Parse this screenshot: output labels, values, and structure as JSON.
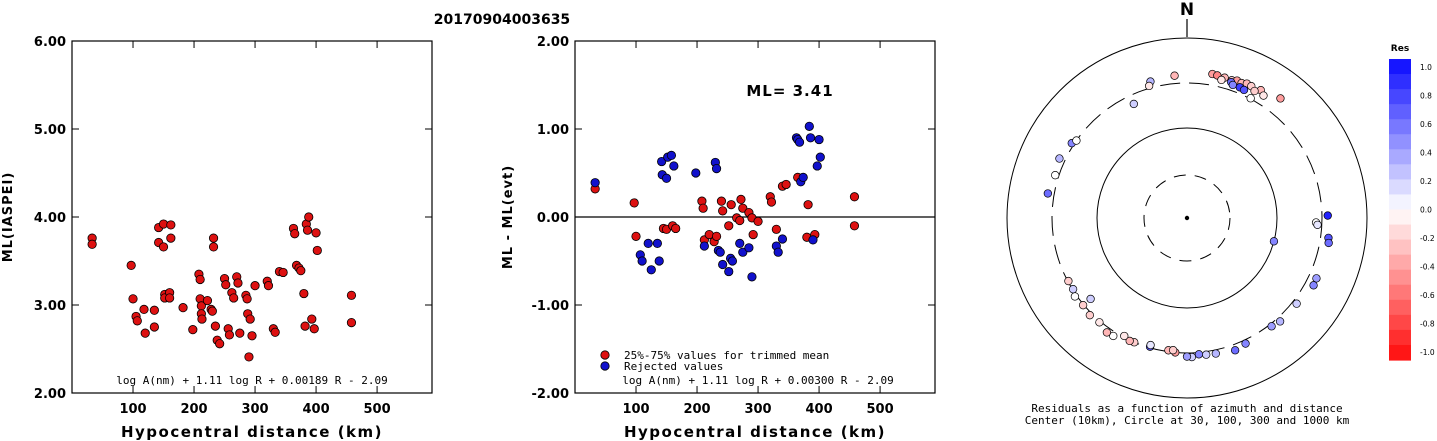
{
  "title": "20170904003635",
  "left_plot": {
    "type": "scatter",
    "ylabel": "ML(IASPEI)",
    "xlabel": "Hypocentral distance (km)",
    "xlim": [
      0,
      590
    ],
    "ylim": [
      2.0,
      6.0
    ],
    "xticks": [
      100,
      200,
      300,
      400,
      500
    ],
    "yticks": [
      "2.00",
      "3.00",
      "4.00",
      "5.00",
      "6.00"
    ],
    "formula": "log A(nm) + 1.11 log R + 0.00189 R - 2.09",
    "color": "#dd1111",
    "points": [
      [
        33,
        3.76
      ],
      [
        33,
        3.69
      ],
      [
        97,
        3.45
      ],
      [
        100,
        3.07
      ],
      [
        105,
        2.87
      ],
      [
        107,
        2.82
      ],
      [
        118,
        2.95
      ],
      [
        120,
        2.68
      ],
      [
        135,
        2.75
      ],
      [
        135,
        2.94
      ],
      [
        142,
        3.88
      ],
      [
        142,
        3.71
      ],
      [
        150,
        3.92
      ],
      [
        150,
        3.66
      ],
      [
        152,
        3.12
      ],
      [
        152,
        3.08
      ],
      [
        160,
        3.14
      ],
      [
        160,
        3.08
      ],
      [
        162,
        3.91
      ],
      [
        162,
        3.76
      ],
      [
        182,
        2.97
      ],
      [
        198,
        2.72
      ],
      [
        208,
        3.35
      ],
      [
        210,
        3.29
      ],
      [
        210,
        3.07
      ],
      [
        212,
        2.99
      ],
      [
        212,
        2.9
      ],
      [
        213,
        2.84
      ],
      [
        222,
        3.05
      ],
      [
        228,
        2.95
      ],
      [
        230,
        2.93
      ],
      [
        232,
        3.76
      ],
      [
        232,
        3.66
      ],
      [
        235,
        2.76
      ],
      [
        238,
        2.6
      ],
      [
        242,
        2.56
      ],
      [
        250,
        3.3
      ],
      [
        252,
        3.23
      ],
      [
        256,
        2.73
      ],
      [
        258,
        2.66
      ],
      [
        262,
        3.14
      ],
      [
        265,
        3.08
      ],
      [
        270,
        3.32
      ],
      [
        272,
        3.25
      ],
      [
        275,
        2.68
      ],
      [
        285,
        3.11
      ],
      [
        287,
        3.07
      ],
      [
        288,
        2.9
      ],
      [
        290,
        2.41
      ],
      [
        292,
        2.84
      ],
      [
        295,
        2.65
      ],
      [
        300,
        3.22
      ],
      [
        320,
        3.27
      ],
      [
        322,
        3.22
      ],
      [
        330,
        2.73
      ],
      [
        333,
        2.69
      ],
      [
        340,
        3.38
      ],
      [
        346,
        3.37
      ],
      [
        363,
        3.87
      ],
      [
        365,
        3.81
      ],
      [
        368,
        3.45
      ],
      [
        372,
        3.42
      ],
      [
        375,
        3.39
      ],
      [
        380,
        3.13
      ],
      [
        382,
        2.76
      ],
      [
        384,
        3.92
      ],
      [
        386,
        3.85
      ],
      [
        388,
        4.0
      ],
      [
        393,
        2.84
      ],
      [
        397,
        2.73
      ],
      [
        400,
        3.82
      ],
      [
        402,
        3.62
      ],
      [
        458,
        3.11
      ],
      [
        458,
        2.8
      ]
    ]
  },
  "middle_plot": {
    "type": "scatter",
    "ylabel": "ML - ML(evt)",
    "xlabel": "Hypocentral distance (km)",
    "xlim": [
      0,
      590
    ],
    "ylim": [
      -2.0,
      2.0
    ],
    "xticks": [
      100,
      200,
      300,
      400,
      500
    ],
    "yticks": [
      "-2.00",
      "-1.00",
      "0.00",
      "1.00",
      "2.00"
    ],
    "annotation": "ML= 3.41",
    "formula": "log A(nm) + 1.11 log R + 0.00300 R - 2.09",
    "legend": [
      "25%-75% values for trimmed mean",
      "Rejected values"
    ],
    "legend_colors": [
      "#dd1111",
      "#1111cc"
    ],
    "red_points": [
      [
        33,
        0.32
      ],
      [
        97,
        0.16
      ],
      [
        100,
        -0.22
      ],
      [
        145,
        -0.13
      ],
      [
        150,
        -0.14
      ],
      [
        160,
        -0.1
      ],
      [
        165,
        -0.13
      ],
      [
        208,
        0.18
      ],
      [
        210,
        0.1
      ],
      [
        212,
        -0.26
      ],
      [
        220,
        -0.2
      ],
      [
        228,
        -0.28
      ],
      [
        232,
        -0.22
      ],
      [
        240,
        0.18
      ],
      [
        242,
        0.07
      ],
      [
        252,
        -0.1
      ],
      [
        256,
        0.14
      ],
      [
        265,
        -0.01
      ],
      [
        270,
        -0.04
      ],
      [
        272,
        0.2
      ],
      [
        275,
        0.1
      ],
      [
        285,
        0.05
      ],
      [
        290,
        -0.01
      ],
      [
        292,
        -0.2
      ],
      [
        300,
        -0.05
      ],
      [
        320,
        0.23
      ],
      [
        322,
        0.17
      ],
      [
        330,
        -0.14
      ],
      [
        340,
        0.35
      ],
      [
        346,
        0.37
      ],
      [
        365,
        0.45
      ],
      [
        380,
        -0.23
      ],
      [
        382,
        0.14
      ],
      [
        393,
        -0.2
      ],
      [
        458,
        0.23
      ],
      [
        458,
        -0.1
      ]
    ],
    "blue_points": [
      [
        33,
        0.39
      ],
      [
        107,
        -0.43
      ],
      [
        110,
        -0.5
      ],
      [
        120,
        -0.3
      ],
      [
        125,
        -0.6
      ],
      [
        135,
        -0.3
      ],
      [
        138,
        -0.5
      ],
      [
        142,
        0.63
      ],
      [
        143,
        0.48
      ],
      [
        150,
        0.44
      ],
      [
        152,
        0.68
      ],
      [
        158,
        0.7
      ],
      [
        162,
        0.58
      ],
      [
        198,
        0.5
      ],
      [
        212,
        -0.33
      ],
      [
        230,
        0.62
      ],
      [
        232,
        0.55
      ],
      [
        235,
        -0.38
      ],
      [
        238,
        -0.4
      ],
      [
        242,
        -0.54
      ],
      [
        252,
        -0.62
      ],
      [
        255,
        -0.47
      ],
      [
        258,
        -0.5
      ],
      [
        270,
        -0.3
      ],
      [
        275,
        -0.4
      ],
      [
        285,
        -0.35
      ],
      [
        290,
        -0.68
      ],
      [
        330,
        -0.33
      ],
      [
        333,
        -0.4
      ],
      [
        340,
        -0.25
      ],
      [
        363,
        0.9
      ],
      [
        365,
        0.88
      ],
      [
        368,
        0.85
      ],
      [
        370,
        0.4
      ],
      [
        374,
        0.45
      ],
      [
        384,
        1.03
      ],
      [
        386,
        0.9
      ],
      [
        390,
        -0.26
      ],
      [
        397,
        0.58
      ],
      [
        400,
        0.88
      ],
      [
        402,
        0.68
      ]
    ]
  },
  "polar_plot": {
    "type": "scatter",
    "north_label": "N",
    "caption_line1": "Residuals as a function of azimuth and distance",
    "caption_line2": "Center (10km), Circle at 30, 100, 300 and 1000 km",
    "points": [
      [
        10,
        405,
        -0.4
      ],
      [
        12,
        400,
        -0.5
      ],
      [
        15,
        395,
        -0.3
      ],
      [
        18,
        390,
        -0.2
      ],
      [
        20,
        405,
        -0.4
      ],
      [
        22,
        398,
        -0.3
      ],
      [
        24,
        415,
        -0.3
      ],
      [
        26,
        410,
        -0.2
      ],
      [
        30,
        420,
        -0.3
      ],
      [
        32,
        385,
        -0.1
      ],
      [
        28,
        380,
        -0.2
      ],
      [
        14,
        365,
        -0.1
      ],
      [
        18,
        370,
        0.6
      ],
      [
        19,
        350,
        0.5
      ],
      [
        22,
        352,
        0.8
      ],
      [
        24,
        345,
        0.7
      ],
      [
        28,
        305,
        0.0
      ],
      [
        38,
        470,
        -0.4
      ],
      [
        355,
        370,
        -0.3
      ],
      [
        345,
        355,
        0.3
      ],
      [
        344,
        320,
        -0.1
      ],
      [
        335,
        240,
        0.2
      ],
      [
        105,
        100,
        0.5
      ],
      [
        92,
        260,
        0.0
      ],
      [
        93,
        270,
        0.1
      ],
      [
        89,
        350,
        0.9
      ],
      [
        98,
        370,
        0.7
      ],
      [
        100,
        380,
        0.6
      ],
      [
        115,
        370,
        0.4
      ],
      [
        118,
        375,
        0.5
      ],
      [
        128,
        335,
        0.2
      ],
      [
        138,
        335,
        0.3
      ],
      [
        142,
        320,
        0.4
      ],
      [
        155,
        330,
        0.5
      ],
      [
        160,
        350,
        0.6
      ],
      [
        168,
        330,
        0.3
      ],
      [
        172,
        325,
        0.2
      ],
      [
        175,
        315,
        0.5
      ],
      [
        178,
        335,
        0.2
      ],
      [
        180,
        330,
        0.4
      ],
      [
        188,
        290,
        -0.3
      ],
      [
        185,
        300,
        -0.4
      ],
      [
        186,
        285,
        -0.2
      ],
      [
        196,
        292,
        0.7
      ],
      [
        196,
        280,
        0.1
      ],
      [
        203,
        300,
        -0.2
      ],
      [
        205,
        305,
        -0.3
      ],
      [
        208,
        290,
        -0.1
      ],
      [
        212,
        335,
        0.0
      ],
      [
        215,
        340,
        -0.3
      ],
      [
        220,
        310,
        -0.1
      ],
      [
        225,
        320,
        -0.2
      ],
      [
        230,
        305,
        -0.2
      ],
      [
        235,
        315,
        0.0
      ],
      [
        230,
        240,
        0.2
      ],
      [
        238,
        295,
        0.2
      ],
      [
        242,
        295,
        -0.2
      ],
      [
        280,
        355,
        0.6
      ],
      [
        288,
        330,
        0.0
      ],
      [
        295,
        350,
        0.3
      ],
      [
        303,
        320,
        0.5
      ],
      [
        305,
        300,
        0.0
      ]
    ],
    "colorbar_title": "Res",
    "colorbar_ticks": [
      "1.0",
      "0.8",
      "0.6",
      "0.4",
      "0.2",
      "0.0",
      "-0.2",
      "-0.4",
      "-0.6",
      "-0.8",
      "-1.0"
    ]
  }
}
